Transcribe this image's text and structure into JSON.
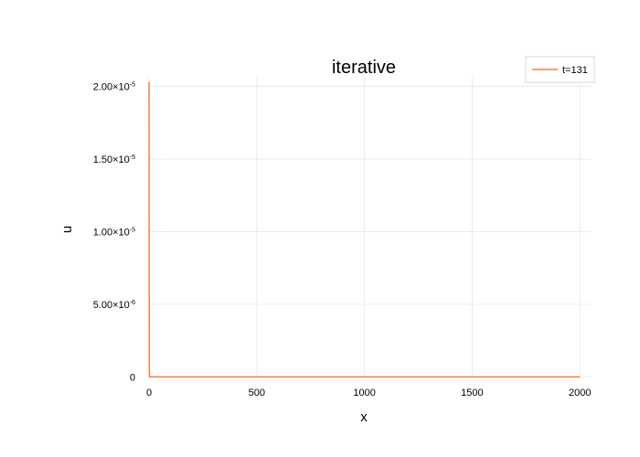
{
  "chart_data": {
    "type": "line",
    "title": "iterative",
    "xlabel": "x",
    "ylabel": "u",
    "xlim": [
      0,
      2050
    ],
    "ylim": [
      -1e-07,
      2.06e-05
    ],
    "x_ticks": [
      0,
      500,
      1000,
      1500,
      2000
    ],
    "x_tick_labels": [
      "0",
      "500",
      "1000",
      "1500",
      "2000"
    ],
    "y_ticks": [
      0,
      5e-06,
      1e-05,
      1.5e-05,
      2e-05
    ],
    "y_tick_labels": [
      {
        "mantissa": "0",
        "exponent": ""
      },
      {
        "mantissa": "5.00×10",
        "exponent": "-6"
      },
      {
        "mantissa": "1.00×10",
        "exponent": "-5"
      },
      {
        "mantissa": "1.50×10",
        "exponent": "-5"
      },
      {
        "mantissa": "2.00×10",
        "exponent": "-5"
      }
    ],
    "grid": true,
    "legend_position": "top-right",
    "series": [
      {
        "name": "t=131",
        "color": "#f47f3b",
        "x": [
          0,
          1,
          2,
          3,
          5,
          10,
          50,
          100,
          500,
          1000,
          1500,
          2000
        ],
        "y": [
          2.03e-05,
          1e-06,
          1e-07,
          0,
          0,
          0,
          0,
          0,
          0,
          0,
          0,
          0
        ]
      }
    ]
  }
}
